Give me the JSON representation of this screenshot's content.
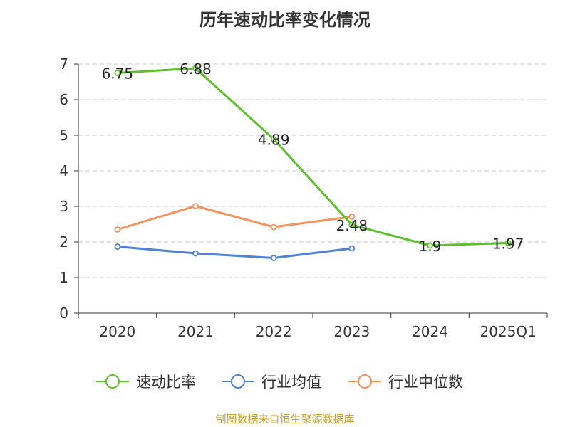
{
  "title": "历年速动比率变化情况",
  "source": "制图数据来自恒生聚源数据库",
  "chart_data": {
    "type": "line",
    "categories": [
      "2020",
      "2021",
      "2022",
      "2023",
      "2024",
      "2025Q1"
    ],
    "ylim": [
      0,
      7
    ],
    "yticks": [
      0,
      1,
      2,
      3,
      4,
      5,
      6,
      7
    ],
    "grid": true,
    "legend_position": "bottom",
    "series": [
      {
        "name": "速动比率",
        "color": "#5dbf2c",
        "values": [
          6.75,
          6.88,
          4.89,
          2.48,
          1.9,
          1.97
        ],
        "labels": [
          "6.75",
          "6.88",
          "4.89",
          "2.48",
          "1.9",
          "1.97"
        ]
      },
      {
        "name": "行业均值",
        "color": "#4f81d6",
        "values": [
          1.87,
          1.68,
          1.55,
          1.82,
          null,
          null
        ]
      },
      {
        "name": "行业中位数",
        "color": "#f5925e",
        "values": [
          2.35,
          3.01,
          2.42,
          2.71,
          null,
          null
        ]
      }
    ]
  }
}
